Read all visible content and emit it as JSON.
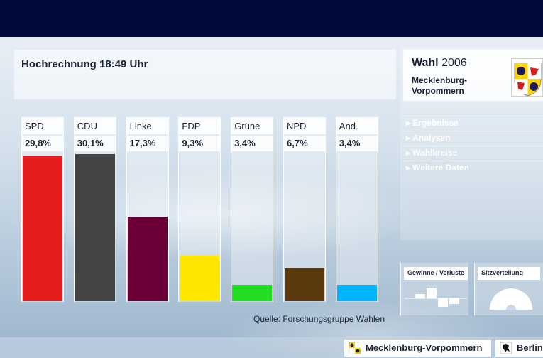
{
  "header": {
    "title": "Hochrechnung 18:49 Uhr",
    "source": "Quelle: Forschungsgruppe Wahlen"
  },
  "sidebar": {
    "wahl_label": "Wahl",
    "year": "2006",
    "region_line1": "Mecklenburg-",
    "region_line2": "Vorpommern",
    "menu": [
      "Ergebnisse",
      "Analysen",
      "Wahlkreise",
      "Weitere Daten"
    ],
    "widgets": [
      "Gewinne / Verluste",
      "Sitzverteilung"
    ]
  },
  "footer": {
    "tabs": [
      "Mecklenburg-Vorpommern",
      "Berlin"
    ]
  },
  "chart_data": {
    "type": "bar",
    "categories": [
      "SPD",
      "CDU",
      "Linke",
      "FDP",
      "Grüne",
      "NPD",
      "And."
    ],
    "values": [
      29.8,
      30.1,
      17.3,
      9.3,
      3.4,
      6.7,
      3.4
    ],
    "value_labels": [
      "29,8%",
      "30,1%",
      "17,3%",
      "9,3%",
      "3,4%",
      "6,7%",
      "3,4%"
    ],
    "colors": [
      "#e41d1d",
      "#444444",
      "#6b0038",
      "#ffe600",
      "#22dd22",
      "#5a3a0e",
      "#00b4ff"
    ],
    "ylim": [
      0,
      30.1
    ],
    "grid": false,
    "title": "Hochrechnung 18:49 Uhr"
  }
}
